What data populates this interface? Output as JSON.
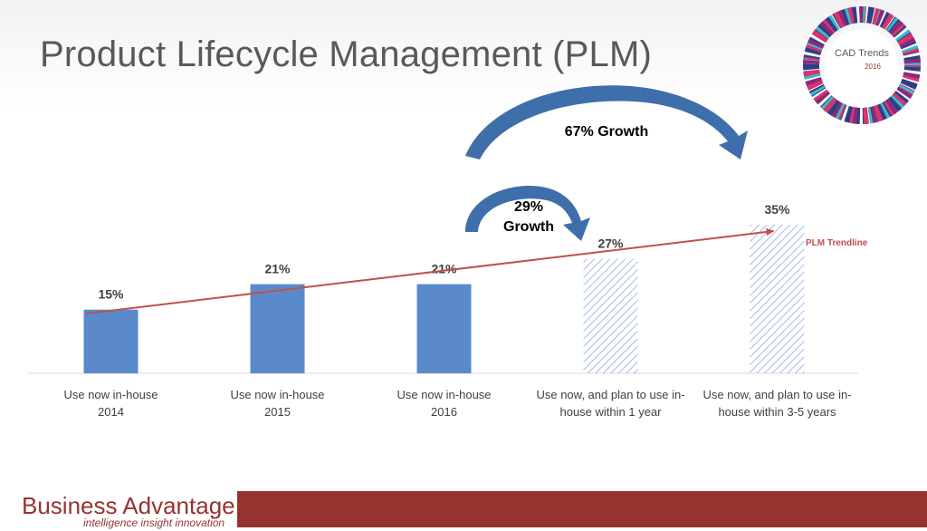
{
  "title": "Product Lifecycle Management (PLM)",
  "badge": {
    "name": "CAD Trends",
    "year": "2016"
  },
  "brand": {
    "name": "Business Advantage",
    "tagline": "intelligence insight innovation"
  },
  "colors": {
    "bar": "#5a8acb",
    "hatch": "#8eabdc",
    "trendline": "#c0504d",
    "arrow": "#3f6faa",
    "footer": "#963331"
  },
  "annotations": {
    "growth_large": "67% Growth",
    "growth_small_line1": "29%",
    "growth_small_line2": "Growth",
    "trendline_label": "PLM Trendline"
  },
  "chart_data": {
    "type": "bar",
    "title": "Product Lifecycle Management (PLM)",
    "xlabel": "",
    "ylabel": "",
    "ylim": [
      0,
      40
    ],
    "grid": false,
    "categories": [
      [
        "Use now in-house",
        "2014"
      ],
      [
        "Use now in-house",
        "2015"
      ],
      [
        "Use now in-house",
        "2016"
      ],
      [
        "Use now, and plan to use in-",
        "house within 1 year"
      ],
      [
        "Use now, and plan to use in-",
        "house within 3-5 years"
      ]
    ],
    "values": [
      15,
      21,
      21,
      27,
      35
    ],
    "labels": [
      "15%",
      "21%",
      "21%",
      "27%",
      "35%"
    ],
    "styles": [
      "solid",
      "solid",
      "solid",
      "hatched",
      "hatched"
    ],
    "trendline": {
      "from": 15,
      "to": 35,
      "label": "PLM Trendline"
    }
  }
}
